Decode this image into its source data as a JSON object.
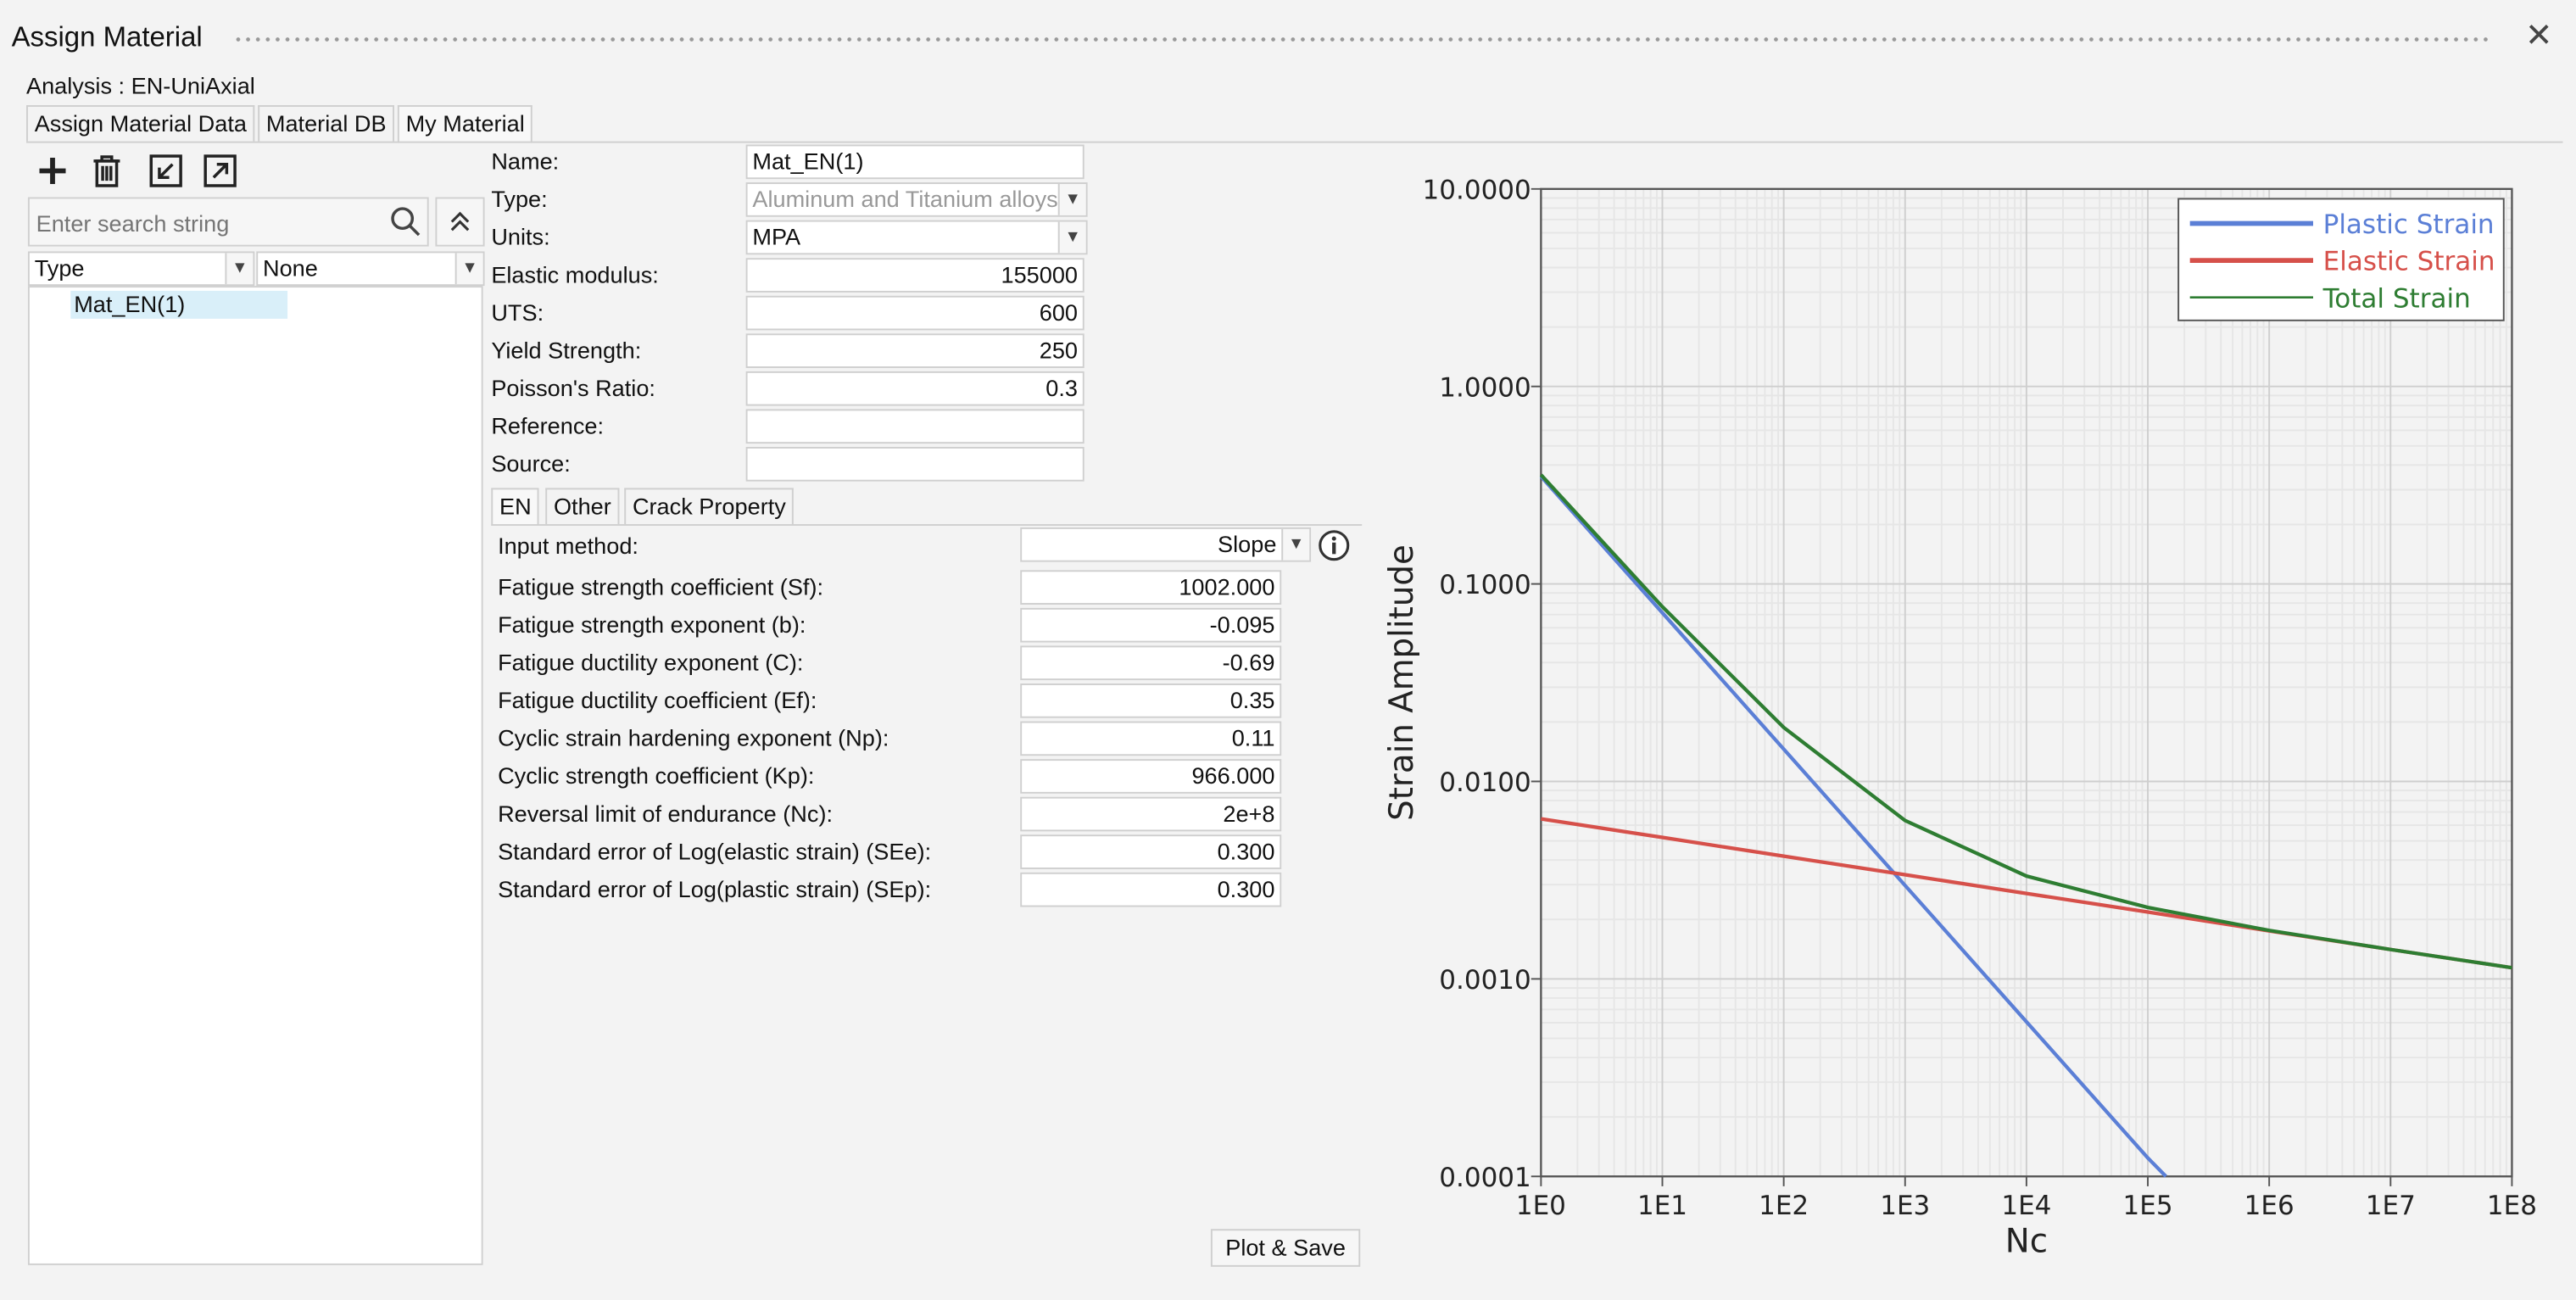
{
  "window": {
    "title": "Assign Material",
    "close_symbol": "✕"
  },
  "analysis_label": "Analysis : EN-UniAxial",
  "tabs": [
    "Assign Material Data",
    "Material DB",
    "My Material"
  ],
  "toolbar": {
    "icons": [
      "plus-icon",
      "trash-icon",
      "import-icon",
      "export-icon"
    ]
  },
  "search": {
    "placeholder": "Enter search string",
    "collapse_symbol": "⌃"
  },
  "filter": {
    "type_label": "Type",
    "none_label": "None"
  },
  "tree": {
    "items": [
      "Mat_EN(1)"
    ]
  },
  "properties": {
    "name": {
      "label": "Name:",
      "value": "Mat_EN(1)"
    },
    "type": {
      "label": "Type:",
      "value": "Aluminum and Titanium alloys"
    },
    "units": {
      "label": "Units:",
      "value": "MPA"
    },
    "elastic_modulus": {
      "label": "Elastic modulus:",
      "value": "155000"
    },
    "uts": {
      "label": "UTS:",
      "value": "600"
    },
    "yield_strength": {
      "label": "Yield Strength:",
      "value": "250"
    },
    "poisson_ratio": {
      "label": "Poisson's Ratio:",
      "value": "0.3"
    },
    "reference": {
      "label": "Reference:",
      "value": ""
    },
    "source": {
      "label": "Source:",
      "value": ""
    }
  },
  "subtabs": [
    "EN",
    "Other",
    "Crack Property"
  ],
  "en": {
    "input_method": {
      "label": "Input method:",
      "value": "Slope"
    },
    "params": [
      {
        "label": "Fatigue strength coefficient (Sf):",
        "value": "1002.000"
      },
      {
        "label": "Fatigue strength exponent (b):",
        "value": "-0.095"
      },
      {
        "label": "Fatigue ductility exponent (C):",
        "value": "-0.69"
      },
      {
        "label": "Fatigue ductility coefficient (Ef):",
        "value": "0.35"
      },
      {
        "label": "Cyclic strain hardening exponent (Np):",
        "value": "0.11"
      },
      {
        "label": "Cyclic strength coefficient (Kp):",
        "value": "966.000"
      },
      {
        "label": "Reversal limit of endurance (Nc):",
        "value": "2e+8"
      },
      {
        "label": "Standard error of Log(elastic strain) (SEe):",
        "value": "0.300"
      },
      {
        "label": "Standard error of Log(plastic strain) (SEp):",
        "value": "0.300"
      }
    ]
  },
  "plot_button": "Plot & Save",
  "chart_data": {
    "type": "line",
    "xlabel": "Nc",
    "ylabel": "Strain Amplitude",
    "x_scale": "log",
    "y_scale": "log",
    "xlim": [
      1,
      100000000
    ],
    "ylim": [
      0.0001,
      10
    ],
    "x_ticks": [
      "1E0",
      "1E1",
      "1E2",
      "1E3",
      "1E4",
      "1E5",
      "1E6",
      "1E7",
      "1E8"
    ],
    "y_ticks": [
      "0.0001",
      "0.0010",
      "0.0100",
      "0.1000",
      "1.0000",
      "10.0000"
    ],
    "grid": true,
    "legend": "top-right",
    "series": [
      {
        "name": "Plastic Strain",
        "color": "#5b7fd6",
        "points": [
          [
            1,
            0.35
          ],
          [
            10,
            0.0714
          ],
          [
            100,
            0.01457
          ],
          [
            1000,
            0.002973
          ],
          [
            10000,
            0.000607
          ],
          [
            100000,
            0.000124
          ],
          [
            141000,
            0.0001
          ]
        ]
      },
      {
        "name": "Elastic Strain",
        "color": "#d6504a",
        "points": [
          [
            1,
            0.00646
          ],
          [
            10,
            0.0052
          ],
          [
            100,
            0.00418
          ],
          [
            1000,
            0.00337
          ],
          [
            10000,
            0.00271
          ],
          [
            100000,
            0.00218
          ],
          [
            1000000,
            0.00175
          ],
          [
            10000000,
            0.00141
          ],
          [
            100000000,
            0.00114
          ]
        ]
      },
      {
        "name": "Total Strain",
        "color": "#2e7d32",
        "points": [
          [
            1,
            0.3565
          ],
          [
            10,
            0.0766
          ],
          [
            100,
            0.01875
          ],
          [
            1000,
            0.00634
          ],
          [
            10000,
            0.00332
          ],
          [
            100000,
            0.0023
          ],
          [
            1000000,
            0.00176
          ],
          [
            10000000,
            0.00141
          ],
          [
            100000000,
            0.00114
          ]
        ]
      }
    ]
  }
}
